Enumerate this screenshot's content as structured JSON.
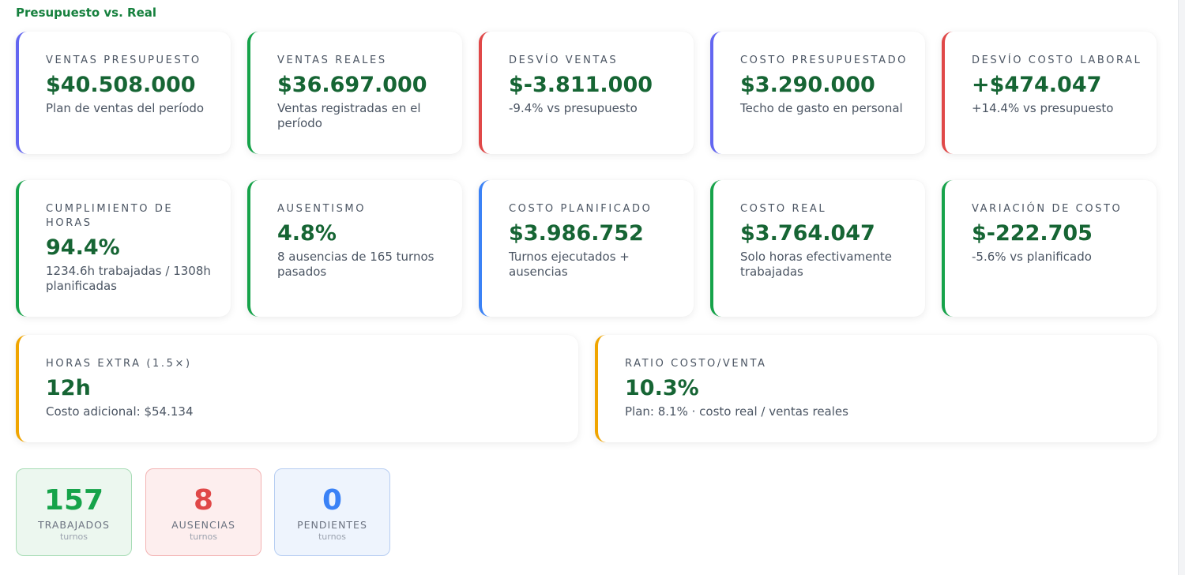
{
  "section": {
    "title": "Presupuesto vs. Real"
  },
  "colors": {
    "title": "#15803d",
    "value": "#166534",
    "indigo": "#6366f1",
    "green": "#16a34a",
    "red": "#e04848",
    "blue": "#3b82f6",
    "amber": "#f0a500"
  },
  "cards": [
    {
      "label": "VENTAS PRESUPUESTO",
      "value": "$40.508.000",
      "desc": "Plan de ventas del período",
      "accent": "indigo"
    },
    {
      "label": "VENTAS REALES",
      "value": "$36.697.000",
      "desc": "Ventas registradas en el período",
      "accent": "green"
    },
    {
      "label": "DESVÍO VENTAS",
      "value": "$-3.811.000",
      "desc": "-9.4% vs presupuesto",
      "accent": "red"
    },
    {
      "label": "COSTO PRESUPUESTADO",
      "value": "$3.290.000",
      "desc": "Techo de gasto en personal",
      "accent": "indigo"
    },
    {
      "label": "DESVÍO COSTO LABORAL",
      "value": "+$474.047",
      "desc": "+14.4% vs presupuesto",
      "accent": "red"
    },
    {
      "label": "CUMPLIMIENTO DE HORAS",
      "value": "94.4%",
      "desc": "1234.6h trabajadas / 1308h planificadas",
      "accent": "green"
    },
    {
      "label": "AUSENTISMO",
      "value": "4.8%",
      "desc": "8 ausencias de 165 turnos pasados",
      "accent": "green"
    },
    {
      "label": "COSTO PLANIFICADO",
      "value": "$3.986.752",
      "desc": "Turnos ejecutados + ausencias",
      "accent": "blue"
    },
    {
      "label": "COSTO REAL",
      "value": "$3.764.047",
      "desc": "Solo horas efectivamente trabajadas",
      "accent": "green"
    },
    {
      "label": "VARIACIÓN DE COSTO",
      "value": "$-222.705",
      "desc": "-5.6% vs planificado",
      "accent": "green"
    },
    {
      "label": "HORAS EXTRA (1.5×)",
      "value": "12h",
      "desc": "Costo adicional: $54.134",
      "accent": "amber"
    },
    {
      "label": "RATIO COSTO/VENTA",
      "value": "10.3%",
      "desc": "Plan: 8.1% · costo real / ventas reales",
      "accent": "amber"
    }
  ],
  "stats": [
    {
      "number": "157",
      "label": "TRABAJADOS",
      "sub": "turnos"
    },
    {
      "number": "8",
      "label": "AUSENCIAS",
      "sub": "turnos"
    },
    {
      "number": "0",
      "label": "PENDIENTES",
      "sub": "turnos"
    }
  ]
}
